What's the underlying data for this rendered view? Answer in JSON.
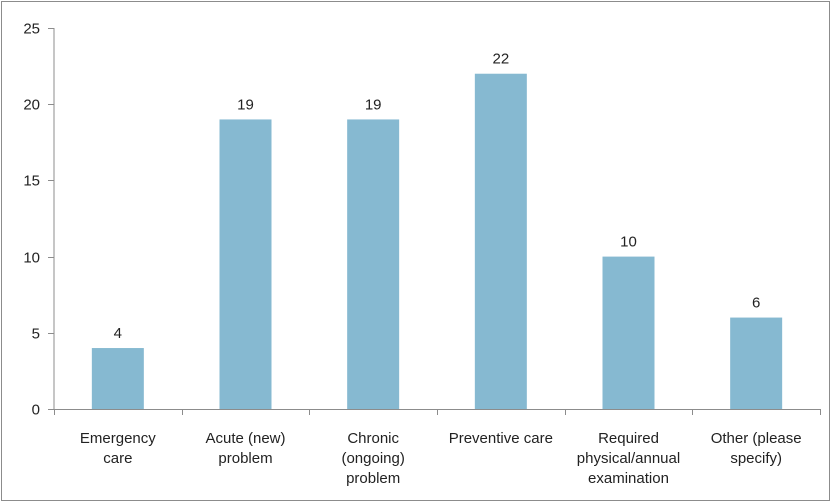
{
  "chart_data": {
    "type": "bar",
    "categories": [
      [
        "Emergency",
        "care"
      ],
      [
        "Acute (new)",
        "problem"
      ],
      [
        "Chronic",
        "(ongoing)",
        "problem"
      ],
      [
        "Preventive care"
      ],
      [
        "Required",
        "physical/annual",
        "examination"
      ],
      [
        "Other (please",
        "specify)"
      ]
    ],
    "values": [
      4,
      19,
      19,
      22,
      10,
      6
    ],
    "data_labels": [
      "4",
      "19",
      "19",
      "22",
      "10",
      "6"
    ],
    "ylim": [
      0,
      25
    ],
    "yticks": [
      0,
      5,
      10,
      15,
      20,
      25
    ],
    "grid": false,
    "bar_color": "#86b9d1",
    "title": "",
    "xlabel": "",
    "ylabel": ""
  }
}
